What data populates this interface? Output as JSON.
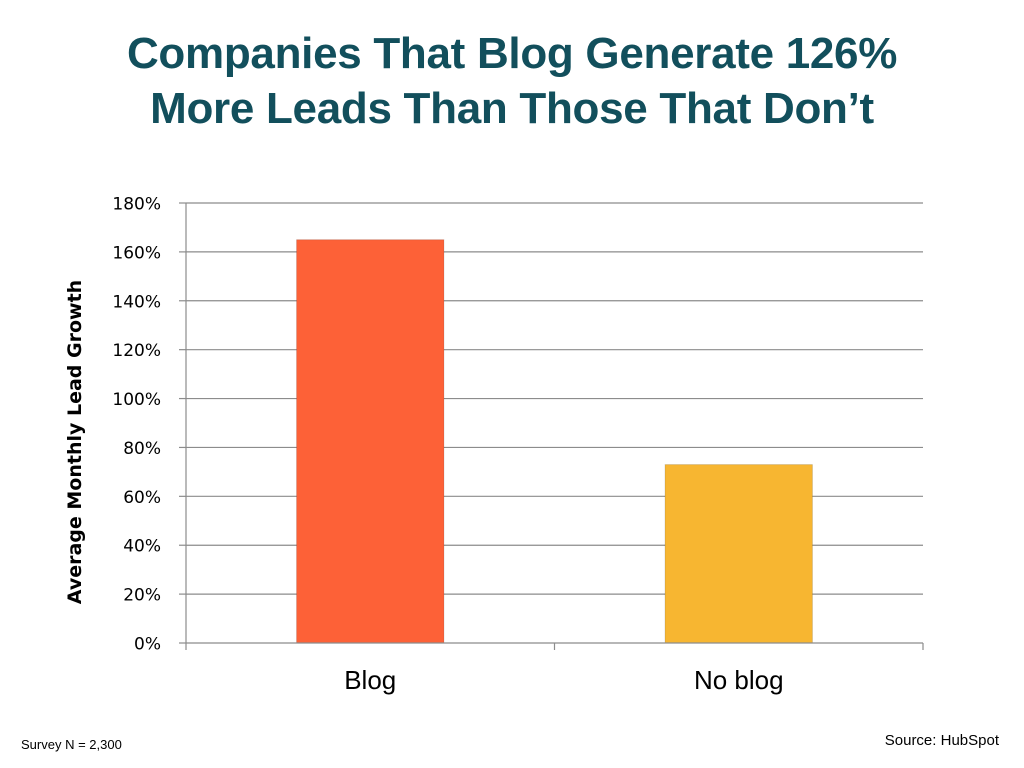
{
  "slide": {
    "title_line1": "Companies That Blog Generate 126%",
    "title_line2": "More Leads Than Those That Don’t",
    "footer_left": "Survey N = 2,300",
    "footer_right": "Source: HubSpot"
  },
  "chart_data": {
    "type": "bar",
    "title": "",
    "xlabel": "",
    "ylabel": "Average Monthly Lead Growth",
    "categories": [
      "Blog",
      "No blog"
    ],
    "values": [
      165,
      73
    ],
    "unit": "%",
    "ylim": [
      0,
      180
    ],
    "yticks": [
      0,
      20,
      40,
      60,
      80,
      100,
      120,
      140,
      160,
      180
    ],
    "ytick_labels": [
      "0%",
      "20%",
      "40%",
      "60%",
      "80%",
      "100%",
      "120%",
      "140%",
      "160%",
      "180%"
    ],
    "colors": [
      "#fd6137",
      "#f7b631"
    ],
    "grid": true,
    "legend": "none"
  }
}
